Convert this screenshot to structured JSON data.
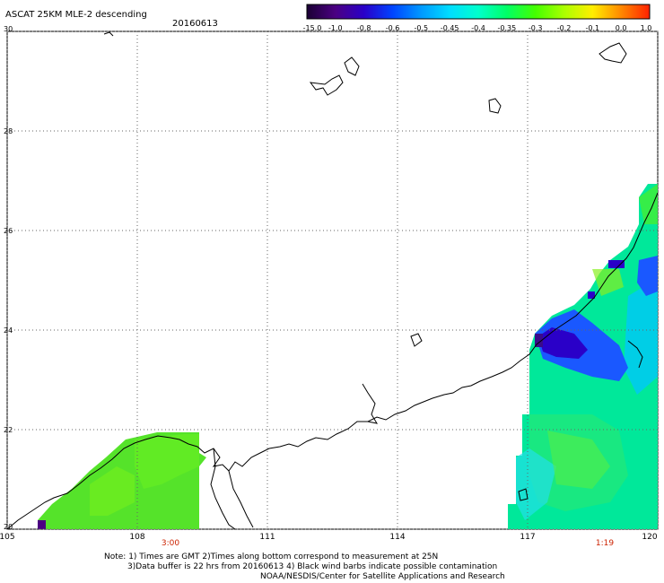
{
  "header": {
    "title": "ASCAT 25KM MLE-2 descending",
    "date": "20160613"
  },
  "colorbar": {
    "labels": [
      "-15.0",
      "-1.0",
      "-0.8",
      "-0.6",
      "-0.5",
      "-0.45",
      "-0.4",
      "-0.35",
      "-0.3",
      "-0.2",
      "-0.1",
      "0.0",
      "1.0"
    ],
    "colors": [
      "#1a0033",
      "#4b0082",
      "#2a00c8",
      "#0044ff",
      "#0099ff",
      "#00ddff",
      "#00ffcc",
      "#00ff66",
      "#44ff00",
      "#aaff00",
      "#ffee00",
      "#ff8800",
      "#ff2200"
    ]
  },
  "map": {
    "lon_range": [
      105,
      120
    ],
    "lat_range": [
      20,
      30
    ],
    "lon_labels": [
      "105",
      "108",
      "111",
      "114",
      "117",
      "120"
    ],
    "lat_labels": [
      "20",
      "22",
      "24",
      "26",
      "28",
      "30"
    ],
    "grid_dashed": true,
    "swath_times": [
      "3:00",
      "1:19"
    ]
  },
  "notes": {
    "line1": "Note: 1) Times are GMT 2)Times along bottom correspond to measurement at 25N",
    "line2": "3)Data buffer is 22 hrs from 20160613 4) Black wind barbs indicate possible contamination",
    "line3": "NOAA/NESDIS/Center for Satellite Applications and Research"
  }
}
